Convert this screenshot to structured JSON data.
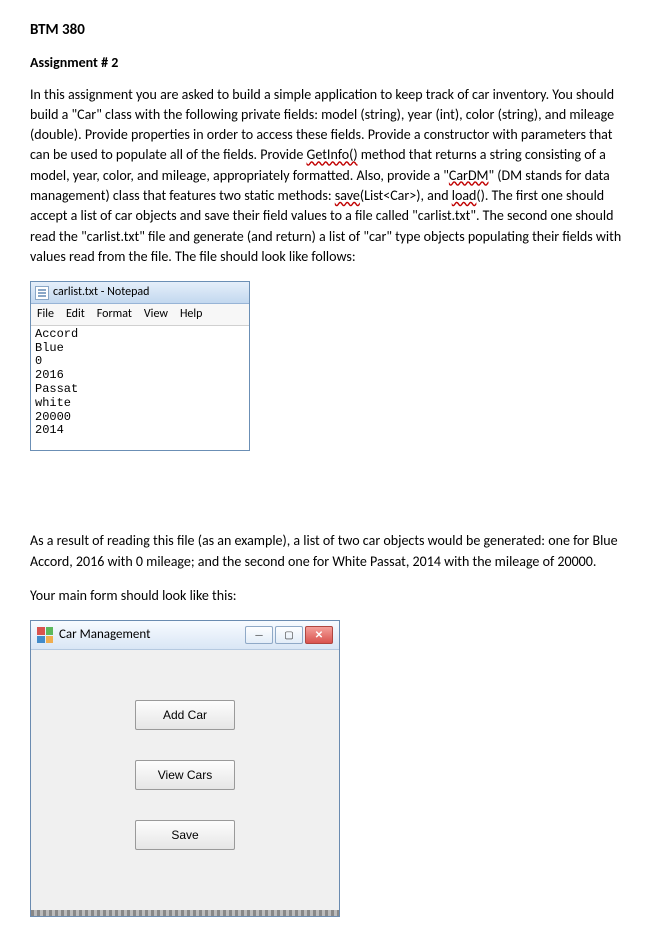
{
  "course": "BTM 380",
  "assignment_title": "Assignment # 2",
  "intro_paragraph": {
    "pre_getinfo": "In this assignment you are asked to build a simple application to keep track of car inventory. You should build a \"Car\" class with the following private fields: model (string), year (int), color (string), and mileage (double). Provide properties in order to access these fields. Provide a constructor with parameters that can be used to populate all of the fields. Provide ",
    "getinfo": "GetInfo()",
    "post_getinfo": " method that returns a string consisting of a model, year, color, and mileage, appropriately formatted. Also, provide a \"",
    "cardm": "CarDM",
    "post_cardm": "\" (DM stands for data management) class that features two static methods: ",
    "save": "save",
    "post_save": "(List<Car>), and ",
    "load": "load",
    "post_load": "(). The first one should accept a list of car objects and save their field values to a file called \"carlist.txt\". The second one should read the \"carlist.txt\" file and generate (and return) a list of \"car\" type objects populating their fields with values read from the file. The file should look like follows:"
  },
  "notepad": {
    "title": "carlist.txt - Notepad",
    "menus": [
      "File",
      "Edit",
      "Format",
      "View",
      "Help"
    ],
    "content": "Accord\nBlue\n0\n2016\nPassat\nwhite\n20000\n2014"
  },
  "result_paragraph": "As a result of reading this file (as an example), a list of two car objects would be generated: one for Blue Accord, 2016 with 0 mileage; and the second one for White Passat, 2014 with the mileage of 20000.",
  "form_intro": "Your main form should look like this:",
  "form_window": {
    "title": "Car Management",
    "buttons": {
      "add": "Add Car",
      "view": "View Cars",
      "save": "Save"
    },
    "controls": {
      "minimize": "—",
      "maximize": "▢",
      "close": "✕"
    }
  },
  "colors": {
    "titlebar_start": "#e5effa",
    "titlebar_end": "#c3d8ef",
    "form_bg": "#f0f0f0",
    "close_red": "#d9534f"
  }
}
